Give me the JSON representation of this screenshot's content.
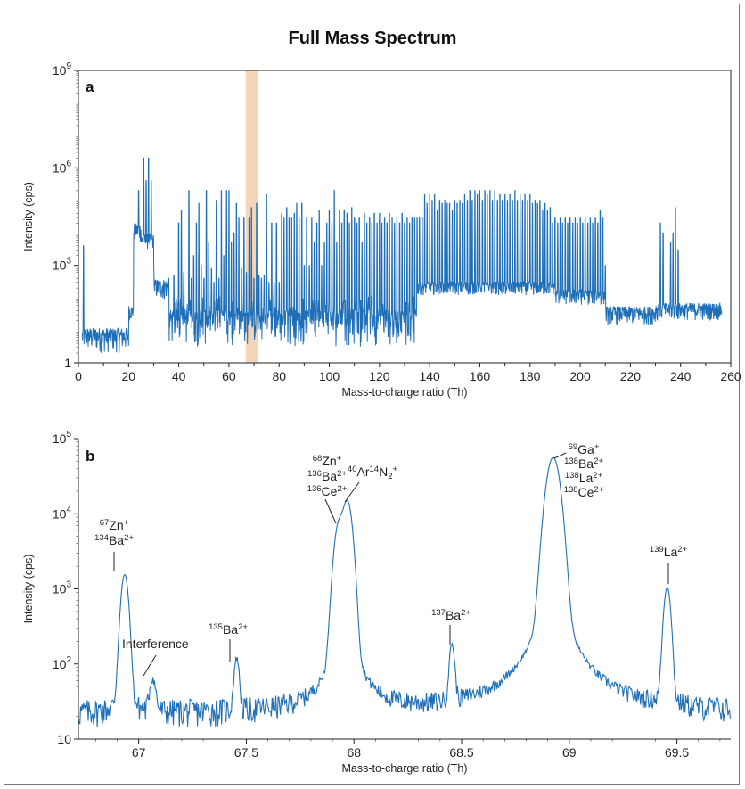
{
  "title": "Full Mass Spectrum",
  "chart_data": [
    {
      "panel": "a",
      "type": "line",
      "scale_y": "log",
      "xlabel": "Mass-to-charge ratio (Th)",
      "ylabel": "Intensity (cps)",
      "xlim": [
        0,
        260
      ],
      "ylim": [
        1,
        1000000000
      ],
      "x_ticks": [
        "0",
        "20",
        "40",
        "60",
        "80",
        "100",
        "120",
        "140",
        "160",
        "180",
        "200",
        "220",
        "240",
        "260"
      ],
      "y_ticks": [
        {
          "base": "10",
          "exp": "9",
          "value": 1000000000
        },
        {
          "base": "10",
          "exp": "6",
          "value": 1000000
        },
        {
          "base": "10",
          "exp": "3",
          "value": 1000
        },
        {
          "base": "1",
          "exp": "",
          "value": 1
        }
      ],
      "highlight_range": [
        66.7,
        71.5
      ],
      "highlight_color": "#f5d5b8",
      "line_color": "#1f6fb8",
      "peaks": [
        {
          "x": 2,
          "y": 4000
        },
        {
          "x": 24,
          "y": 200000
        },
        {
          "x": 26,
          "y": 2000000
        },
        {
          "x": 27,
          "y": 400000
        },
        {
          "x": 28,
          "y": 2000000
        },
        {
          "x": 29,
          "y": 400000
        },
        {
          "x": 30,
          "y": 1000
        },
        {
          "x": 36,
          "y": 400
        },
        {
          "x": 38,
          "y": 500
        },
        {
          "x": 40,
          "y": 20000
        },
        {
          "x": 41,
          "y": 50000
        },
        {
          "x": 42,
          "y": 600
        },
        {
          "x": 44,
          "y": 200000
        },
        {
          "x": 45,
          "y": 400
        },
        {
          "x": 46,
          "y": 2000
        },
        {
          "x": 47,
          "y": 20000
        },
        {
          "x": 48,
          "y": 80000
        },
        {
          "x": 49,
          "y": 1000
        },
        {
          "x": 50,
          "y": 400
        },
        {
          "x": 51,
          "y": 200000
        },
        {
          "x": 52,
          "y": 5000
        },
        {
          "x": 53,
          "y": 800
        },
        {
          "x": 54,
          "y": 300
        },
        {
          "x": 55,
          "y": 100000
        },
        {
          "x": 56,
          "y": 400
        },
        {
          "x": 57,
          "y": 200000
        },
        {
          "x": 58,
          "y": 2000
        },
        {
          "x": 59,
          "y": 200000
        },
        {
          "x": 60,
          "y": 200000
        },
        {
          "x": 61,
          "y": 5000
        },
        {
          "x": 62,
          "y": 10000
        },
        {
          "x": 63,
          "y": 80000
        },
        {
          "x": 64,
          "y": 30000
        },
        {
          "x": 65,
          "y": 800
        },
        {
          "x": 66,
          "y": 30000
        },
        {
          "x": 67,
          "y": 600
        },
        {
          "x": 68,
          "y": 30000
        },
        {
          "x": 69,
          "y": 60000
        },
        {
          "x": 70,
          "y": 400
        },
        {
          "x": 71,
          "y": 80000
        },
        {
          "x": 72,
          "y": 500
        },
        {
          "x": 73,
          "y": 400
        },
        {
          "x": 74,
          "y": 500
        },
        {
          "x": 75,
          "y": 150000
        },
        {
          "x": 76,
          "y": 300
        },
        {
          "x": 77,
          "y": 20000
        },
        {
          "x": 78,
          "y": 300
        },
        {
          "x": 79,
          "y": 20000
        },
        {
          "x": 80,
          "y": 300
        },
        {
          "x": 81,
          "y": 40000
        },
        {
          "x": 82,
          "y": 30000
        },
        {
          "x": 83,
          "y": 60000
        },
        {
          "x": 84,
          "y": 30000
        },
        {
          "x": 85,
          "y": 30000
        },
        {
          "x": 86,
          "y": 40000
        },
        {
          "x": 87,
          "y": 80000
        },
        {
          "x": 88,
          "y": 30000
        },
        {
          "x": 89,
          "y": 80000
        },
        {
          "x": 90,
          "y": 1000
        },
        {
          "x": 91,
          "y": 30000
        },
        {
          "x": 92,
          "y": 1000
        },
        {
          "x": 93,
          "y": 30000
        },
        {
          "x": 94,
          "y": 5000
        },
        {
          "x": 95,
          "y": 20000
        },
        {
          "x": 96,
          "y": 50000
        },
        {
          "x": 97,
          "y": 1000
        },
        {
          "x": 98,
          "y": 5000
        },
        {
          "x": 99,
          "y": 20000
        },
        {
          "x": 100,
          "y": 50000
        },
        {
          "x": 101,
          "y": 20000
        },
        {
          "x": 102,
          "y": 200000
        },
        {
          "x": 103,
          "y": 5000
        },
        {
          "x": 104,
          "y": 50000
        },
        {
          "x": 105,
          "y": 20000
        },
        {
          "x": 106,
          "y": 50000
        },
        {
          "x": 107,
          "y": 40000
        },
        {
          "x": 108,
          "y": 20000
        },
        {
          "x": 109,
          "y": 60000
        },
        {
          "x": 110,
          "y": 30000
        },
        {
          "x": 111,
          "y": 20000
        },
        {
          "x": 112,
          "y": 30000
        },
        {
          "x": 113,
          "y": 5000
        },
        {
          "x": 114,
          "y": 40000
        },
        {
          "x": 115,
          "y": 20000
        },
        {
          "x": 116,
          "y": 30000
        },
        {
          "x": 117,
          "y": 20000
        },
        {
          "x": 118,
          "y": 40000
        },
        {
          "x": 119,
          "y": 20000
        },
        {
          "x": 120,
          "y": 40000
        },
        {
          "x": 121,
          "y": 20000
        },
        {
          "x": 122,
          "y": 30000
        },
        {
          "x": 123,
          "y": 20000
        },
        {
          "x": 124,
          "y": 40000
        },
        {
          "x": 125,
          "y": 30000
        },
        {
          "x": 126,
          "y": 20000
        },
        {
          "x": 127,
          "y": 30000
        },
        {
          "x": 128,
          "y": 20000
        },
        {
          "x": 129,
          "y": 40000
        },
        {
          "x": 130,
          "y": 20000
        },
        {
          "x": 131,
          "y": 30000
        },
        {
          "x": 132,
          "y": 20000
        },
        {
          "x": 133,
          "y": 30000
        },
        {
          "x": 134,
          "y": 30000
        },
        {
          "x": 135,
          "y": 30000
        },
        {
          "x": 136,
          "y": 30000
        },
        {
          "x": 137,
          "y": 30000
        },
        {
          "x": 138,
          "y": 150000
        },
        {
          "x": 139,
          "y": 80000
        },
        {
          "x": 140,
          "y": 150000
        },
        {
          "x": 141,
          "y": 100000
        },
        {
          "x": 142,
          "y": 150000
        },
        {
          "x": 143,
          "y": 50000
        },
        {
          "x": 144,
          "y": 100000
        },
        {
          "x": 145,
          "y": 80000
        },
        {
          "x": 146,
          "y": 100000
        },
        {
          "x": 147,
          "y": 80000
        },
        {
          "x": 148,
          "y": 80000
        },
        {
          "x": 149,
          "y": 50000
        },
        {
          "x": 150,
          "y": 100000
        },
        {
          "x": 151,
          "y": 80000
        },
        {
          "x": 152,
          "y": 100000
        },
        {
          "x": 153,
          "y": 80000
        },
        {
          "x": 154,
          "y": 150000
        },
        {
          "x": 155,
          "y": 100000
        },
        {
          "x": 156,
          "y": 200000
        },
        {
          "x": 157,
          "y": 100000
        },
        {
          "x": 158,
          "y": 200000
        },
        {
          "x": 159,
          "y": 150000
        },
        {
          "x": 160,
          "y": 200000
        },
        {
          "x": 161,
          "y": 100000
        },
        {
          "x": 162,
          "y": 200000
        },
        {
          "x": 163,
          "y": 150000
        },
        {
          "x": 164,
          "y": 200000
        },
        {
          "x": 165,
          "y": 100000
        },
        {
          "x": 166,
          "y": 200000
        },
        {
          "x": 167,
          "y": 100000
        },
        {
          "x": 168,
          "y": 150000
        },
        {
          "x": 169,
          "y": 100000
        },
        {
          "x": 170,
          "y": 150000
        },
        {
          "x": 171,
          "y": 100000
        },
        {
          "x": 172,
          "y": 150000
        },
        {
          "x": 173,
          "y": 100000
        },
        {
          "x": 174,
          "y": 200000
        },
        {
          "x": 175,
          "y": 100000
        },
        {
          "x": 176,
          "y": 150000
        },
        {
          "x": 177,
          "y": 100000
        },
        {
          "x": 178,
          "y": 150000
        },
        {
          "x": 179,
          "y": 100000
        },
        {
          "x": 180,
          "y": 150000
        },
        {
          "x": 181,
          "y": 80000
        },
        {
          "x": 182,
          "y": 100000
        },
        {
          "x": 183,
          "y": 80000
        },
        {
          "x": 184,
          "y": 100000
        },
        {
          "x": 185,
          "y": 50000
        },
        {
          "x": 186,
          "y": 80000
        },
        {
          "x": 187,
          "y": 50000
        },
        {
          "x": 188,
          "y": 60000
        },
        {
          "x": 189,
          "y": 20000
        },
        {
          "x": 190,
          "y": 30000
        },
        {
          "x": 191,
          "y": 20000
        },
        {
          "x": 192,
          "y": 30000
        },
        {
          "x": 193,
          "y": 20000
        },
        {
          "x": 194,
          "y": 30000
        },
        {
          "x": 195,
          "y": 20000
        },
        {
          "x": 196,
          "y": 30000
        },
        {
          "x": 197,
          "y": 20000
        },
        {
          "x": 198,
          "y": 30000
        },
        {
          "x": 199,
          "y": 20000
        },
        {
          "x": 200,
          "y": 30000
        },
        {
          "x": 201,
          "y": 20000
        },
        {
          "x": 202,
          "y": 30000
        },
        {
          "x": 203,
          "y": 20000
        },
        {
          "x": 204,
          "y": 30000
        },
        {
          "x": 205,
          "y": 20000
        },
        {
          "x": 206,
          "y": 30000
        },
        {
          "x": 207,
          "y": 20000
        },
        {
          "x": 208,
          "y": 50000
        },
        {
          "x": 209,
          "y": 30000
        },
        {
          "x": 210,
          "y": 1000
        },
        {
          "x": 232,
          "y": 20000
        },
        {
          "x": 233,
          "y": 10000
        },
        {
          "x": 236,
          "y": 5000
        },
        {
          "x": 237,
          "y": 10000
        },
        {
          "x": 238,
          "y": 60000
        },
        {
          "x": 239,
          "y": 3000
        }
      ]
    },
    {
      "panel": "b",
      "type": "line",
      "scale_y": "log",
      "xlabel": "Mass-to-charge ratio (Th)",
      "ylabel": "Intensity (cps)",
      "xlim": [
        66.72,
        69.75
      ],
      "ylim": [
        10,
        100000
      ],
      "x_ticks": [
        "67",
        "67.5",
        "68",
        "68.5",
        "69",
        "69.5"
      ],
      "x_tick_values": [
        67,
        67.5,
        68,
        68.5,
        69,
        69.5
      ],
      "y_ticks": [
        {
          "base": "10",
          "exp": "5",
          "value": 100000
        },
        {
          "base": "10",
          "exp": "4",
          "value": 10000
        },
        {
          "base": "10",
          "exp": "3",
          "value": 1000
        },
        {
          "base": "10",
          "exp": "2",
          "value": 100
        },
        {
          "base": "10",
          "exp": "",
          "value": 10
        }
      ],
      "line_color": "#1f6fb8",
      "baseline": 22,
      "peaks": [
        {
          "x": 66.935,
          "y": 1500,
          "w": 0.014
        },
        {
          "x": 67.065,
          "y": 40,
          "w": 0.012
        },
        {
          "x": 67.455,
          "y": 95,
          "w": 0.01
        },
        {
          "x": 67.93,
          "y": 7000,
          "w": 0.018
        },
        {
          "x": 67.97,
          "y": 14000,
          "w": 0.018
        },
        {
          "x": 68.455,
          "y": 150,
          "w": 0.01
        },
        {
          "x": 68.925,
          "y": 55000,
          "w": 0.025
        },
        {
          "x": 69.455,
          "y": 1000,
          "w": 0.013
        }
      ],
      "annotations": [
        {
          "id": "ann-67zn",
          "lines": [
            [
              {
                "sup": "67"
              },
              {
                "t": "Zn"
              },
              {
                "sup": "+"
              }
            ],
            [
              {
                "sup": "134"
              },
              {
                "t": "Ba"
              },
              {
                "sup": "2+"
              }
            ]
          ]
        },
        {
          "id": "ann-interference",
          "lines": [
            [
              {
                "t": "Interference"
              }
            ]
          ]
        },
        {
          "id": "ann-135ba",
          "lines": [
            [
              {
                "sup": "135"
              },
              {
                "t": "Ba"
              },
              {
                "sup": "2+"
              }
            ]
          ]
        },
        {
          "id": "ann-68zn",
          "lines": [
            [
              {
                "sup": "68"
              },
              {
                "t": "Zn"
              },
              {
                "sup": "+"
              }
            ],
            [
              {
                "sup": "136"
              },
              {
                "t": "Ba"
              },
              {
                "sup": "2+"
              }
            ],
            [
              {
                "sup": "136"
              },
              {
                "t": "Ce"
              },
              {
                "sup": "2+"
              }
            ]
          ]
        },
        {
          "id": "ann-40ar",
          "lines": [
            [
              {
                "sup": "40"
              },
              {
                "t": "Ar"
              },
              {
                "sup": "14"
              },
              {
                "t": "N"
              },
              {
                "sub": "2"
              },
              {
                "sup": "+"
              }
            ]
          ]
        },
        {
          "id": "ann-137ba",
          "lines": [
            [
              {
                "sup": "137"
              },
              {
                "t": "Ba"
              },
              {
                "sup": "2+"
              }
            ]
          ]
        },
        {
          "id": "ann-69ga",
          "lines": [
            [
              {
                "sup": "69"
              },
              {
                "t": "Ga"
              },
              {
                "sup": "+"
              }
            ],
            [
              {
                "sup": "138"
              },
              {
                "t": "Ba"
              },
              {
                "sup": "2+"
              }
            ],
            [
              {
                "sup": "138"
              },
              {
                "t": "La"
              },
              {
                "sup": "2+"
              }
            ],
            [
              {
                "sup": "138"
              },
              {
                "t": "Ce"
              },
              {
                "sup": "2+"
              }
            ]
          ]
        },
        {
          "id": "ann-139la",
          "lines": [
            [
              {
                "sup": "139"
              },
              {
                "t": "La"
              },
              {
                "sup": "2+"
              }
            ]
          ]
        }
      ]
    }
  ]
}
